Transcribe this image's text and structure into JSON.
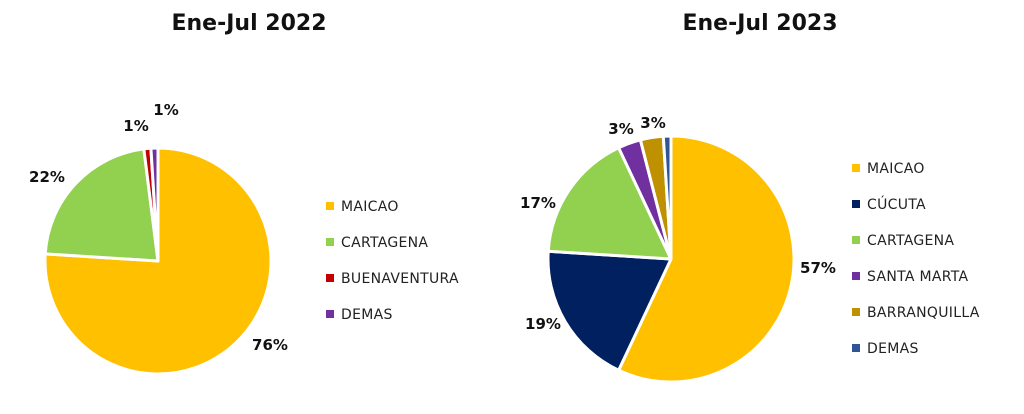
{
  "chart_data": [
    {
      "type": "pie",
      "title": "Ene-Jul 2022",
      "categories": [
        "MAICAO",
        "CARTAGENA",
        "BUENAVENTURA",
        "DEMAS"
      ],
      "values": [
        76,
        22,
        1,
        1
      ],
      "data_labels": [
        "76%",
        "22%",
        "1%",
        "1%"
      ],
      "colors": [
        "#FFC000",
        "#92D050",
        "#C00000",
        "#7030A0"
      ],
      "legend_position": "right"
    },
    {
      "type": "pie",
      "title": "Ene-Jul 2023",
      "categories": [
        "MAICAO",
        "CÚCUTA",
        "CARTAGENA",
        "SANTA MARTA",
        "BARRANQUILLA",
        "DEMAS"
      ],
      "values": [
        57,
        19,
        17,
        3,
        3,
        1
      ],
      "data_labels": [
        "57%",
        "19%",
        "17%",
        "3%",
        "3%",
        ""
      ],
      "colors": [
        "#FFC000",
        "#002060",
        "#92D050",
        "#7030A0",
        "#BF9000",
        "#2F5597"
      ],
      "legend_position": "right"
    }
  ]
}
